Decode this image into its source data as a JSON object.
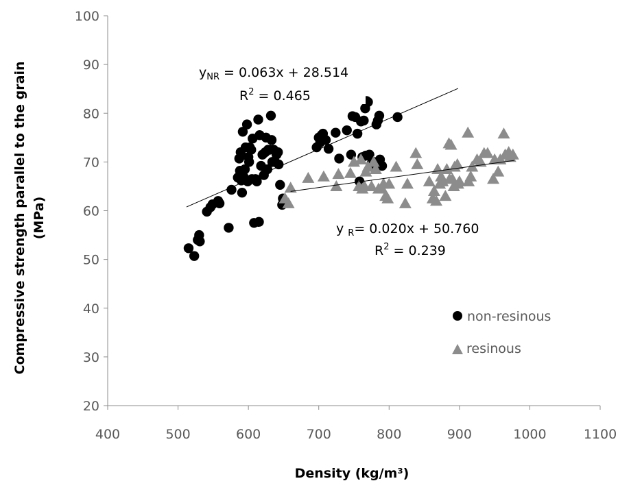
{
  "chart_data": {
    "type": "scatter",
    "xlabel": "Density (kg/m³)",
    "ylabel": "Compressive strength parallel to the grain (MPa)",
    "ylabel_lines": [
      "Compressive strength parallel to the grain",
      "(MPa)"
    ],
    "xlim": [
      400,
      1100
    ],
    "ylim": [
      20,
      100
    ],
    "xticks": [
      "400",
      "500",
      "600",
      "700",
      "800",
      "900",
      "1000",
      "1100"
    ],
    "yticks": [
      "20",
      "30",
      "40",
      "50",
      "60",
      "70",
      "80",
      "90",
      "100"
    ],
    "grid": false,
    "legend_position": "lower-right",
    "series": [
      {
        "name": "non-resinous",
        "marker": "circle",
        "color": "#000000",
        "points": [
          [
            515,
            52.3
          ],
          [
            523,
            50.7
          ],
          [
            528,
            54
          ],
          [
            530,
            55
          ],
          [
            531,
            53.7
          ],
          [
            541,
            59.8
          ],
          [
            546,
            60.7
          ],
          [
            549,
            61.3
          ],
          [
            557,
            62
          ],
          [
            559,
            61.5
          ],
          [
            572,
            56.5
          ],
          [
            576,
            64.3
          ],
          [
            585,
            66.8
          ],
          [
            587,
            70.7
          ],
          [
            588,
            68.2
          ],
          [
            589,
            72
          ],
          [
            590,
            66.2
          ],
          [
            591,
            63.7
          ],
          [
            592,
            76.2
          ],
          [
            593,
            67
          ],
          [
            595,
            68.5
          ],
          [
            596,
            73
          ],
          [
            598,
            77.7
          ],
          [
            599,
            66
          ],
          [
            600,
            71
          ],
          [
            601,
            70
          ],
          [
            602,
            73
          ],
          [
            604,
            72.5
          ],
          [
            605,
            66.5
          ],
          [
            606,
            74.8
          ],
          [
            608,
            57.5
          ],
          [
            610,
            66.5
          ],
          [
            612,
            66
          ],
          [
            614,
            78.7
          ],
          [
            615,
            57.7
          ],
          [
            616,
            75.5
          ],
          [
            618,
            69.2
          ],
          [
            620,
            71.5
          ],
          [
            622,
            67.3
          ],
          [
            624,
            72
          ],
          [
            625,
            75
          ],
          [
            627,
            68.5
          ],
          [
            628,
            72.5
          ],
          [
            630,
            72.5
          ],
          [
            632,
            79.5
          ],
          [
            633,
            74.5
          ],
          [
            634,
            70
          ],
          [
            636,
            72.5
          ],
          [
            638,
            70
          ],
          [
            640,
            71.5
          ],
          [
            642,
            72
          ],
          [
            643,
            69.5
          ],
          [
            645,
            65.3
          ],
          [
            648,
            61.2
          ],
          [
            649,
            62.5
          ],
          [
            697,
            73
          ],
          [
            700,
            75
          ],
          [
            702,
            74
          ],
          [
            704,
            75.5
          ],
          [
            706,
            75.8
          ],
          [
            710,
            74.5
          ],
          [
            714,
            72.7
          ],
          [
            724,
            76
          ],
          [
            729,
            70.7
          ],
          [
            740,
            76.5
          ],
          [
            746,
            71.5
          ],
          [
            748,
            79.4
          ],
          [
            752,
            79.2
          ],
          [
            755,
            75.8
          ],
          [
            758,
            66
          ],
          [
            760,
            78.3
          ],
          [
            762,
            71
          ],
          [
            764,
            78.5
          ],
          [
            766,
            81
          ],
          [
            767,
            71.3
          ],
          [
            768,
            82.5
          ],
          [
            770,
            82.3
          ],
          [
            772,
            71.5
          ],
          [
            775,
            69.7
          ],
          [
            778,
            70
          ],
          [
            780,
            69
          ],
          [
            782,
            77.7
          ],
          [
            784,
            78.5
          ],
          [
            786,
            79.5
          ],
          [
            787,
            70.5
          ],
          [
            789,
            69.3
          ],
          [
            790,
            69.2
          ],
          [
            812,
            79.2
          ]
        ]
      },
      {
        "name": "resinous",
        "marker": "triangle",
        "color": "#8c8c8c",
        "points": [
          [
            652,
            62.5
          ],
          [
            657,
            61.5
          ],
          [
            660,
            64.7
          ],
          [
            685,
            66.7
          ],
          [
            707,
            67
          ],
          [
            725,
            65
          ],
          [
            728,
            67.5
          ],
          [
            745,
            67.7
          ],
          [
            750,
            70
          ],
          [
            757,
            65
          ],
          [
            760,
            70.5
          ],
          [
            762,
            64.5
          ],
          [
            765,
            65
          ],
          [
            767,
            68
          ],
          [
            770,
            69
          ],
          [
            775,
            65
          ],
          [
            778,
            70
          ],
          [
            781,
            68.5
          ],
          [
            785,
            64.5
          ],
          [
            790,
            64.5
          ],
          [
            792,
            65.5
          ],
          [
            795,
            63
          ],
          [
            798,
            62.5
          ],
          [
            800,
            65.5
          ],
          [
            810,
            69
          ],
          [
            823,
            61.5
          ],
          [
            826,
            65.5
          ],
          [
            838,
            71.8
          ],
          [
            840,
            69.5
          ],
          [
            857,
            66
          ],
          [
            862,
            62.5
          ],
          [
            864,
            64
          ],
          [
            867,
            62
          ],
          [
            869,
            68.5
          ],
          [
            872,
            65.5
          ],
          [
            874,
            67
          ],
          [
            876,
            66
          ],
          [
            880,
            63
          ],
          [
            882,
            68.5
          ],
          [
            885,
            73.8
          ],
          [
            886,
            66.5
          ],
          [
            888,
            73.5
          ],
          [
            890,
            66.5
          ],
          [
            892,
            65
          ],
          [
            893,
            69
          ],
          [
            897,
            69.5
          ],
          [
            898,
            65.5
          ],
          [
            900,
            66
          ],
          [
            912,
            76
          ],
          [
            913,
            66
          ],
          [
            916,
            67
          ],
          [
            918,
            69
          ],
          [
            925,
            70.5
          ],
          [
            930,
            70
          ],
          [
            935,
            71.8
          ],
          [
            940,
            71.8
          ],
          [
            948,
            66.5
          ],
          [
            950,
            70.5
          ],
          [
            955,
            68
          ],
          [
            958,
            70.5
          ],
          [
            963,
            75.8
          ],
          [
            965,
            71.5
          ],
          [
            970,
            72
          ],
          [
            972,
            71
          ],
          [
            976,
            71.5
          ]
        ]
      }
    ],
    "trendlines": [
      {
        "series": "non-resinous",
        "slope": 0.063,
        "intercept": 28.514,
        "x_range": [
          512,
          898
        ]
      },
      {
        "series": "resinous",
        "slope": 0.02,
        "intercept": 50.76,
        "x_range": [
          660,
          978
        ]
      }
    ],
    "annotations": {
      "nr_equation_prefix": "y",
      "nr_equation_sub": "NR",
      "nr_equation_rest": " = 0.063x + 28.514",
      "nr_r2_prefix": "R",
      "nr_r2_sup": "2",
      "nr_r2_rest": " = 0.465",
      "r_equation_prefix": "y ",
      "r_equation_sub": "R",
      "r_equation_rest": "= 0.020x + 50.760",
      "r_r2_prefix": "R",
      "r_r2_sup": "2",
      "r_r2_rest": " = 0.239"
    }
  }
}
